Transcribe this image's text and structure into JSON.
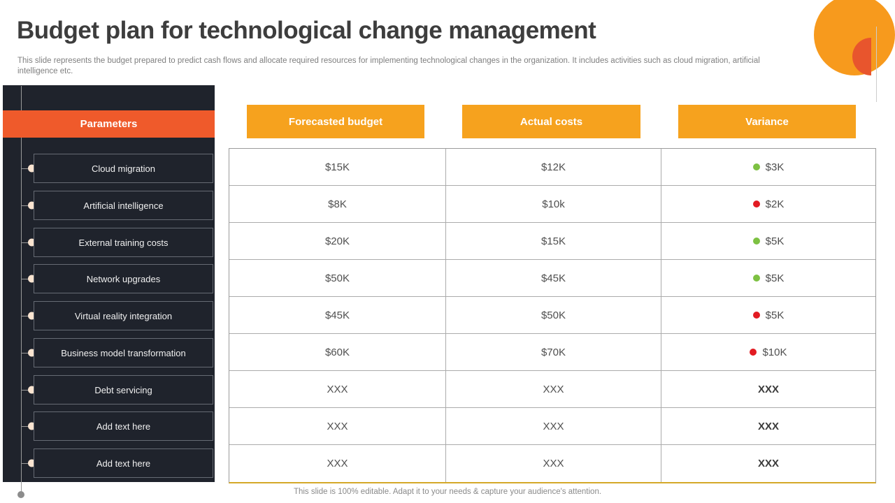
{
  "slide": {
    "title": "Budget plan for technological change management",
    "subtitle": "This slide represents the budget prepared to predict cash flows and allocate required resources for implementing technological changes in the organization. It includes activities such as cloud migration, artificial intelligence etc.",
    "footer": "This slide is 100% editable. Adapt it to your needs & capture your audience's attention."
  },
  "sidebar": {
    "header": "Parameters",
    "items": [
      "Cloud migration",
      "Artificial intelligence",
      "External training costs",
      "Network upgrades",
      "Virtual reality integration",
      "Business model transformation",
      "Debt servicing",
      "Add text here",
      "Add text here"
    ]
  },
  "table": {
    "columns": [
      "Forecasted budget",
      "Actual costs",
      "Variance"
    ],
    "rows": [
      {
        "forecasted": "$15K",
        "actual": "$12K",
        "variance": "$3K",
        "dot": "green"
      },
      {
        "forecasted": "$8K",
        "actual": "$10k",
        "variance": "$2K",
        "dot": "red"
      },
      {
        "forecasted": "$20K",
        "actual": "$15K",
        "variance": "$5K",
        "dot": "green"
      },
      {
        "forecasted": "$50K",
        "actual": "$45K",
        "variance": "$5K",
        "dot": "green"
      },
      {
        "forecasted": "$45K",
        "actual": "$50K",
        "variance": "$5K",
        "dot": "red"
      },
      {
        "forecasted": "$60K",
        "actual": "$70K",
        "variance": "$10K",
        "dot": "red"
      },
      {
        "forecasted": "XXX",
        "actual": "XXX",
        "variance": "XXX",
        "dot": "none"
      },
      {
        "forecasted": "XXX",
        "actual": "XXX",
        "variance": "XXX",
        "dot": "none"
      },
      {
        "forecasted": "XXX",
        "actual": "XXX",
        "variance": "XXX",
        "dot": "none"
      }
    ]
  },
  "colors": {
    "header_orange": "#F6A21E",
    "parameters_orange": "#EF5A2B",
    "decoration_orange": "#F79A1D",
    "decoration_red_orange": "#E8552D",
    "panel_dark": "#1F232C",
    "green_dot": "#7DC142",
    "red_dot": "#E21B22",
    "table_bottom_gold": "#D4A928"
  }
}
